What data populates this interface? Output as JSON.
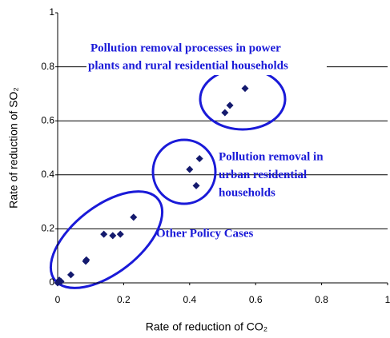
{
  "chart_data": {
    "type": "scatter",
    "x_label": "Rate of reduction of CO₂",
    "y_label": "Rate of reduction of SO₂",
    "series": [
      {
        "color": "#141a6e",
        "x": [
          0,
          0.005,
          0.01,
          0.04,
          0.085,
          0.087,
          0.14,
          0.167,
          0.19,
          0.23,
          0.4,
          0.43,
          0.42,
          0.507,
          0.522,
          0.568
        ],
        "values": [
          0,
          0.01,
          0.005,
          0.03,
          0.08,
          0.085,
          0.18,
          0.175,
          0.18,
          0.243,
          0.42,
          0.46,
          0.36,
          0.63,
          0.657,
          0.72
        ]
      }
    ],
    "xlim": [
      0,
      1
    ],
    "xticks": [
      0,
      0.2,
      0.4,
      0.6,
      0.8,
      1
    ],
    "ylim": [
      0,
      1
    ],
    "yticks": [
      0,
      0.2,
      0.4,
      0.6,
      0.8,
      1
    ],
    "grid": true,
    "annotations": [
      [
        "Pollution removal processes in power",
        "plants and rural residential households"
      ],
      [
        "Pollution removal in",
        "urban residential",
        "households"
      ],
      [
        "Other Policy Cases"
      ]
    ]
  }
}
